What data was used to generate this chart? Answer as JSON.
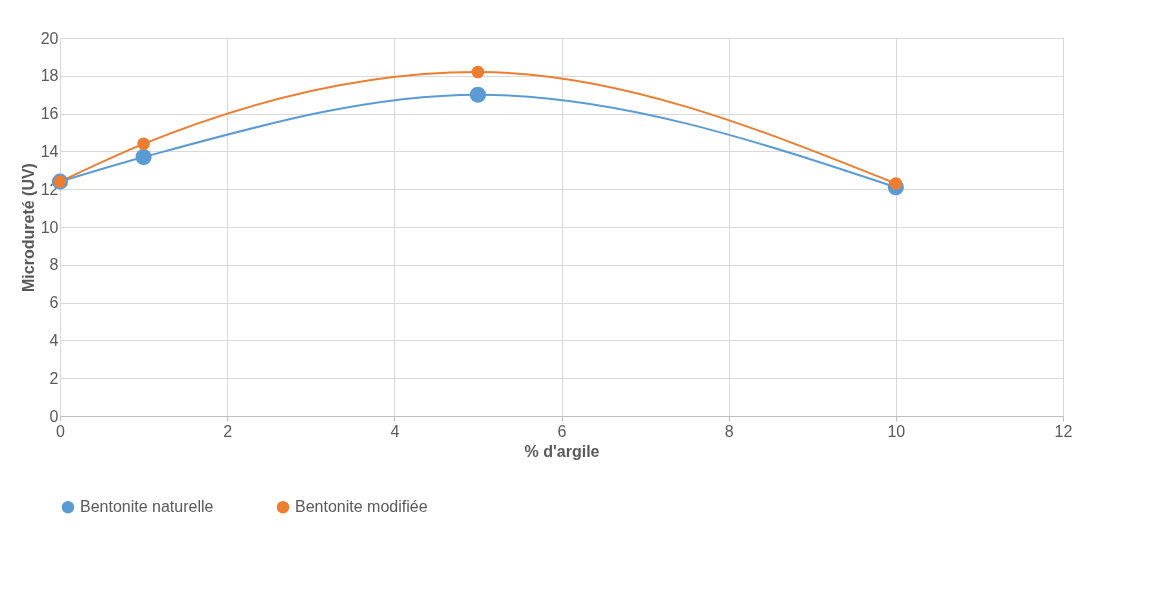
{
  "chart_data": {
    "type": "line",
    "xlabel": "% d'argile",
    "ylabel": "Microdureté (UV)",
    "x": [
      0,
      1,
      5,
      10
    ],
    "series": [
      {
        "name": "Bentonite naturelle",
        "color": "#5b9bd5",
        "values": [
          12.4,
          13.7,
          17.0,
          12.1
        ]
      },
      {
        "name": "Bentonite modifiée",
        "color": "#ed7d31",
        "values": [
          12.4,
          14.4,
          18.2,
          12.3
        ]
      }
    ],
    "xlim": [
      0,
      12
    ],
    "xticks": [
      0,
      2,
      4,
      6,
      8,
      10,
      12
    ],
    "ylim": [
      0,
      20
    ],
    "yticks": [
      0,
      2,
      4,
      6,
      8,
      10,
      12,
      14,
      16,
      18,
      20
    ],
    "grid": true,
    "legend": "bottom",
    "marker": "circle",
    "line_style": "solid"
  }
}
